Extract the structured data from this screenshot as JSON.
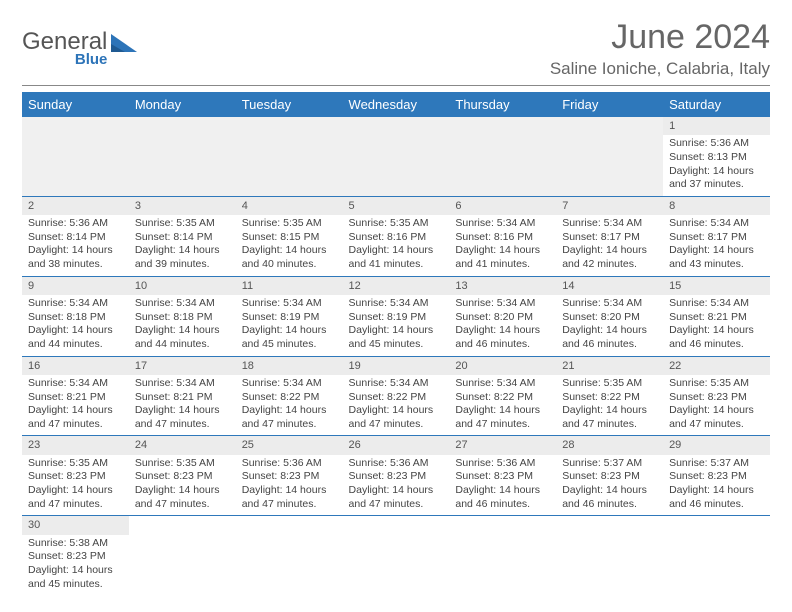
{
  "brand": {
    "name": "General",
    "sub": "Blue",
    "triangle_color": "#2d74b8"
  },
  "title": "June 2024",
  "location": "Saline Ioniche, Calabria, Italy",
  "colors": {
    "header_bg": "#2e78bb",
    "header_fg": "#ffffff",
    "daynum_bg": "#ececec",
    "cell_border": "#2e78bb",
    "text": "#444444"
  },
  "weekdays": [
    "Sunday",
    "Monday",
    "Tuesday",
    "Wednesday",
    "Thursday",
    "Friday",
    "Saturday"
  ],
  "weeks": [
    [
      null,
      null,
      null,
      null,
      null,
      null,
      {
        "n": "1",
        "sr": "Sunrise: 5:36 AM",
        "ss": "Sunset: 8:13 PM",
        "dl": "Daylight: 14 hours and 37 minutes."
      }
    ],
    [
      {
        "n": "2",
        "sr": "Sunrise: 5:36 AM",
        "ss": "Sunset: 8:14 PM",
        "dl": "Daylight: 14 hours and 38 minutes."
      },
      {
        "n": "3",
        "sr": "Sunrise: 5:35 AM",
        "ss": "Sunset: 8:14 PM",
        "dl": "Daylight: 14 hours and 39 minutes."
      },
      {
        "n": "4",
        "sr": "Sunrise: 5:35 AM",
        "ss": "Sunset: 8:15 PM",
        "dl": "Daylight: 14 hours and 40 minutes."
      },
      {
        "n": "5",
        "sr": "Sunrise: 5:35 AM",
        "ss": "Sunset: 8:16 PM",
        "dl": "Daylight: 14 hours and 41 minutes."
      },
      {
        "n": "6",
        "sr": "Sunrise: 5:34 AM",
        "ss": "Sunset: 8:16 PM",
        "dl": "Daylight: 14 hours and 41 minutes."
      },
      {
        "n": "7",
        "sr": "Sunrise: 5:34 AM",
        "ss": "Sunset: 8:17 PM",
        "dl": "Daylight: 14 hours and 42 minutes."
      },
      {
        "n": "8",
        "sr": "Sunrise: 5:34 AM",
        "ss": "Sunset: 8:17 PM",
        "dl": "Daylight: 14 hours and 43 minutes."
      }
    ],
    [
      {
        "n": "9",
        "sr": "Sunrise: 5:34 AM",
        "ss": "Sunset: 8:18 PM",
        "dl": "Daylight: 14 hours and 44 minutes."
      },
      {
        "n": "10",
        "sr": "Sunrise: 5:34 AM",
        "ss": "Sunset: 8:18 PM",
        "dl": "Daylight: 14 hours and 44 minutes."
      },
      {
        "n": "11",
        "sr": "Sunrise: 5:34 AM",
        "ss": "Sunset: 8:19 PM",
        "dl": "Daylight: 14 hours and 45 minutes."
      },
      {
        "n": "12",
        "sr": "Sunrise: 5:34 AM",
        "ss": "Sunset: 8:19 PM",
        "dl": "Daylight: 14 hours and 45 minutes."
      },
      {
        "n": "13",
        "sr": "Sunrise: 5:34 AM",
        "ss": "Sunset: 8:20 PM",
        "dl": "Daylight: 14 hours and 46 minutes."
      },
      {
        "n": "14",
        "sr": "Sunrise: 5:34 AM",
        "ss": "Sunset: 8:20 PM",
        "dl": "Daylight: 14 hours and 46 minutes."
      },
      {
        "n": "15",
        "sr": "Sunrise: 5:34 AM",
        "ss": "Sunset: 8:21 PM",
        "dl": "Daylight: 14 hours and 46 minutes."
      }
    ],
    [
      {
        "n": "16",
        "sr": "Sunrise: 5:34 AM",
        "ss": "Sunset: 8:21 PM",
        "dl": "Daylight: 14 hours and 47 minutes."
      },
      {
        "n": "17",
        "sr": "Sunrise: 5:34 AM",
        "ss": "Sunset: 8:21 PM",
        "dl": "Daylight: 14 hours and 47 minutes."
      },
      {
        "n": "18",
        "sr": "Sunrise: 5:34 AM",
        "ss": "Sunset: 8:22 PM",
        "dl": "Daylight: 14 hours and 47 minutes."
      },
      {
        "n": "19",
        "sr": "Sunrise: 5:34 AM",
        "ss": "Sunset: 8:22 PM",
        "dl": "Daylight: 14 hours and 47 minutes."
      },
      {
        "n": "20",
        "sr": "Sunrise: 5:34 AM",
        "ss": "Sunset: 8:22 PM",
        "dl": "Daylight: 14 hours and 47 minutes."
      },
      {
        "n": "21",
        "sr": "Sunrise: 5:35 AM",
        "ss": "Sunset: 8:22 PM",
        "dl": "Daylight: 14 hours and 47 minutes."
      },
      {
        "n": "22",
        "sr": "Sunrise: 5:35 AM",
        "ss": "Sunset: 8:23 PM",
        "dl": "Daylight: 14 hours and 47 minutes."
      }
    ],
    [
      {
        "n": "23",
        "sr": "Sunrise: 5:35 AM",
        "ss": "Sunset: 8:23 PM",
        "dl": "Daylight: 14 hours and 47 minutes."
      },
      {
        "n": "24",
        "sr": "Sunrise: 5:35 AM",
        "ss": "Sunset: 8:23 PM",
        "dl": "Daylight: 14 hours and 47 minutes."
      },
      {
        "n": "25",
        "sr": "Sunrise: 5:36 AM",
        "ss": "Sunset: 8:23 PM",
        "dl": "Daylight: 14 hours and 47 minutes."
      },
      {
        "n": "26",
        "sr": "Sunrise: 5:36 AM",
        "ss": "Sunset: 8:23 PM",
        "dl": "Daylight: 14 hours and 47 minutes."
      },
      {
        "n": "27",
        "sr": "Sunrise: 5:36 AM",
        "ss": "Sunset: 8:23 PM",
        "dl": "Daylight: 14 hours and 46 minutes."
      },
      {
        "n": "28",
        "sr": "Sunrise: 5:37 AM",
        "ss": "Sunset: 8:23 PM",
        "dl": "Daylight: 14 hours and 46 minutes."
      },
      {
        "n": "29",
        "sr": "Sunrise: 5:37 AM",
        "ss": "Sunset: 8:23 PM",
        "dl": "Daylight: 14 hours and 46 minutes."
      }
    ],
    [
      {
        "n": "30",
        "sr": "Sunrise: 5:38 AM",
        "ss": "Sunset: 8:23 PM",
        "dl": "Daylight: 14 hours and 45 minutes."
      },
      null,
      null,
      null,
      null,
      null,
      null
    ]
  ]
}
